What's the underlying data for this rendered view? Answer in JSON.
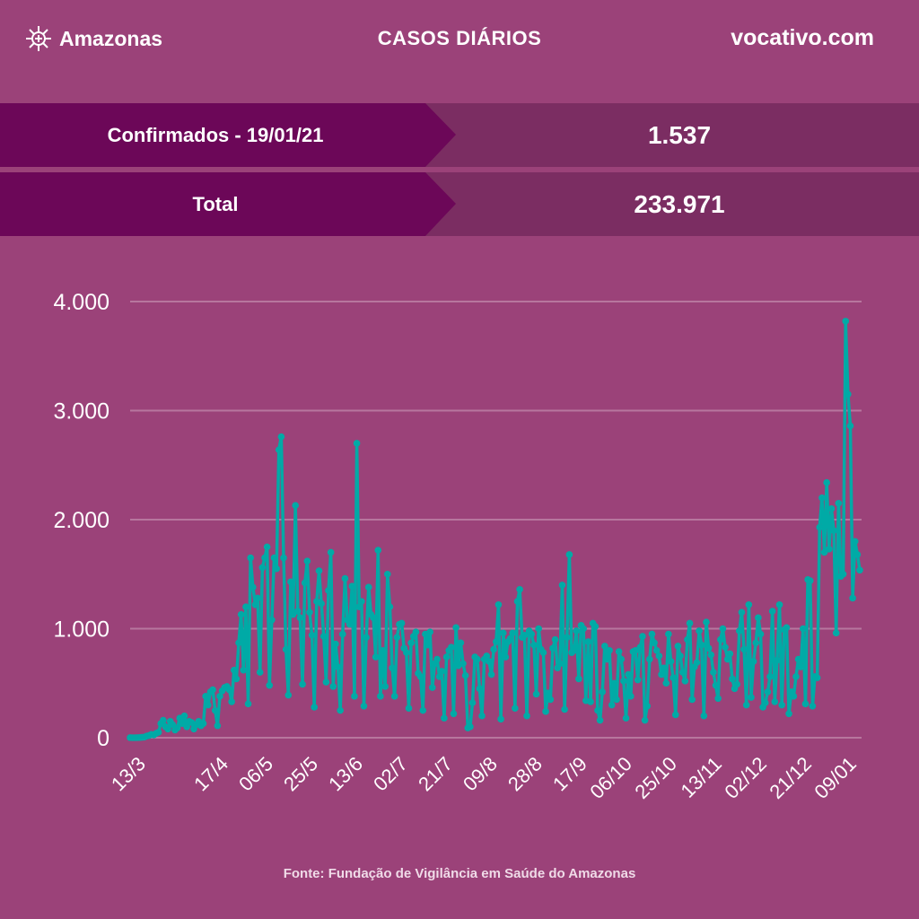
{
  "header": {
    "logo_text": "Amazonas",
    "title": "CASOS DIÁRIOS",
    "site": "vocativo.com"
  },
  "summary": [
    {
      "label": "Confirmados - 19/01/21",
      "value": "1.537"
    },
    {
      "label": "Total",
      "value": "233.971"
    }
  ],
  "footer": "Fonte: Fundação de Vigilância em Saúde do Amazonas",
  "colors": {
    "background": "#9b4279",
    "line": "#00aaa6",
    "label_dark": "#6c0758",
    "value_bg": "#7b2d62"
  },
  "chart_data": {
    "type": "line",
    "title": "CASOS DIÁRIOS",
    "xlabel": "",
    "ylabel": "",
    "ylim": [
      0,
      4000
    ],
    "grid": true,
    "y_ticks": [
      {
        "value": 0,
        "label": "0"
      },
      {
        "value": 1000,
        "label": "1.000"
      },
      {
        "value": 2000,
        "label": "2.000"
      },
      {
        "value": 3000,
        "label": "3.000"
      },
      {
        "value": 4000,
        "label": "4.000"
      }
    ],
    "x_ticks": [
      {
        "day": 0,
        "label": "13/3"
      },
      {
        "day": 35,
        "label": "17/4"
      },
      {
        "day": 54,
        "label": "06/5"
      },
      {
        "day": 73,
        "label": "25/5"
      },
      {
        "day": 92,
        "label": "13/6"
      },
      {
        "day": 111,
        "label": "02/7"
      },
      {
        "day": 130,
        "label": "21/7"
      },
      {
        "day": 149,
        "label": "09/8"
      },
      {
        "day": 168,
        "label": "28/8"
      },
      {
        "day": 187,
        "label": "17/9"
      },
      {
        "day": 206,
        "label": "06/10"
      },
      {
        "day": 225,
        "label": "25/10"
      },
      {
        "day": 244,
        "label": "13/11"
      },
      {
        "day": 263,
        "label": "02/12"
      },
      {
        "day": 282,
        "label": "21/12"
      },
      {
        "day": 301,
        "label": "09/01"
      }
    ],
    "series": [
      {
        "name": "Casos diários",
        "values": [
          1,
          0,
          0,
          1,
          2,
          4,
          6,
          15,
          20,
          30,
          25,
          40,
          50,
          130,
          160,
          100,
          80,
          150,
          120,
          70,
          90,
          180,
          130,
          200,
          100,
          150,
          140,
          80,
          120,
          150,
          110,
          130,
          380,
          300,
          420,
          440,
          250,
          110,
          380,
          430,
          460,
          470,
          440,
          330,
          620,
          540,
          870,
          1130,
          620,
          1200,
          310,
          1650,
          1380,
          1220,
          1280,
          600,
          1560,
          1650,
          1750,
          480,
          1080,
          1650,
          1550,
          2640,
          2760,
          1650,
          810,
          390,
          1430,
          1130,
          2130,
          1160,
          1100,
          490,
          1420,
          1620,
          1150,
          940,
          280,
          1250,
          1530,
          1230,
          930,
          510,
          1350,
          1700,
          470,
          860,
          650,
          250,
          950,
          1460,
          1080,
          1040,
          1390,
          380,
          2700,
          1200,
          1250,
          290,
          920,
          1380,
          1130,
          1100,
          740,
          1720,
          380,
          800,
          470,
          1500,
          1200,
          640,
          380,
          920,
          1040,
          1050,
          820,
          780,
          270,
          870,
          930,
          970,
          590,
          560,
          250,
          950,
          850,
          970,
          460,
          680,
          720,
          560,
          610,
          180,
          740,
          800,
          830,
          220,
          1010,
          660,
          870,
          680,
          570,
          90,
          100,
          320,
          740,
          720,
          450,
          200,
          720,
          750,
          700,
          580,
          810,
          880,
          1220,
          170,
          960,
          740,
          880,
          910,
          960,
          270,
          1250,
          1360,
          920,
          940,
          200,
          980,
          950,
          850,
          400,
          1000,
          810,
          780,
          240,
          410,
          350,
          820,
          900,
          640,
          680,
          1400,
          260,
          920,
          1680,
          780,
          800,
          980,
          540,
          1030,
          1000,
          340,
          880,
          330,
          1050,
          1020,
          250,
          160,
          420,
          840,
          720,
          800,
          300,
          500,
          350,
          790,
          720,
          520,
          180,
          580,
          380,
          790,
          800,
          530,
          830,
          930,
          160,
          290,
          720,
          950,
          870,
          800,
          750,
          580,
          640,
          500,
          950,
          700,
          550,
          210,
          840,
          750,
          600,
          520,
          900,
          1050,
          350,
          650,
          690,
          980,
          850,
          200,
          1060,
          820,
          760,
          600,
          480,
          360,
          900,
          1000,
          830,
          720,
          770,
          540,
          450,
          490,
          980,
          1150,
          810,
          300,
          1220,
          370,
          700,
          870,
          1100,
          950,
          280,
          320,
          420,
          560,
          1160,
          330,
          710,
          1220,
          300,
          990,
          1010,
          220,
          420,
          380,
          560,
          720,
          650,
          1000,
          310,
          1450,
          1440,
          290,
          560,
          550,
          1930,
          2200,
          1700,
          2340,
          1730,
          2100,
          1900,
          960,
          2150,
          1480,
          1500,
          3820,
          3150,
          2860,
          1280,
          1800,
          1680,
          1537
        ]
      }
    ]
  }
}
